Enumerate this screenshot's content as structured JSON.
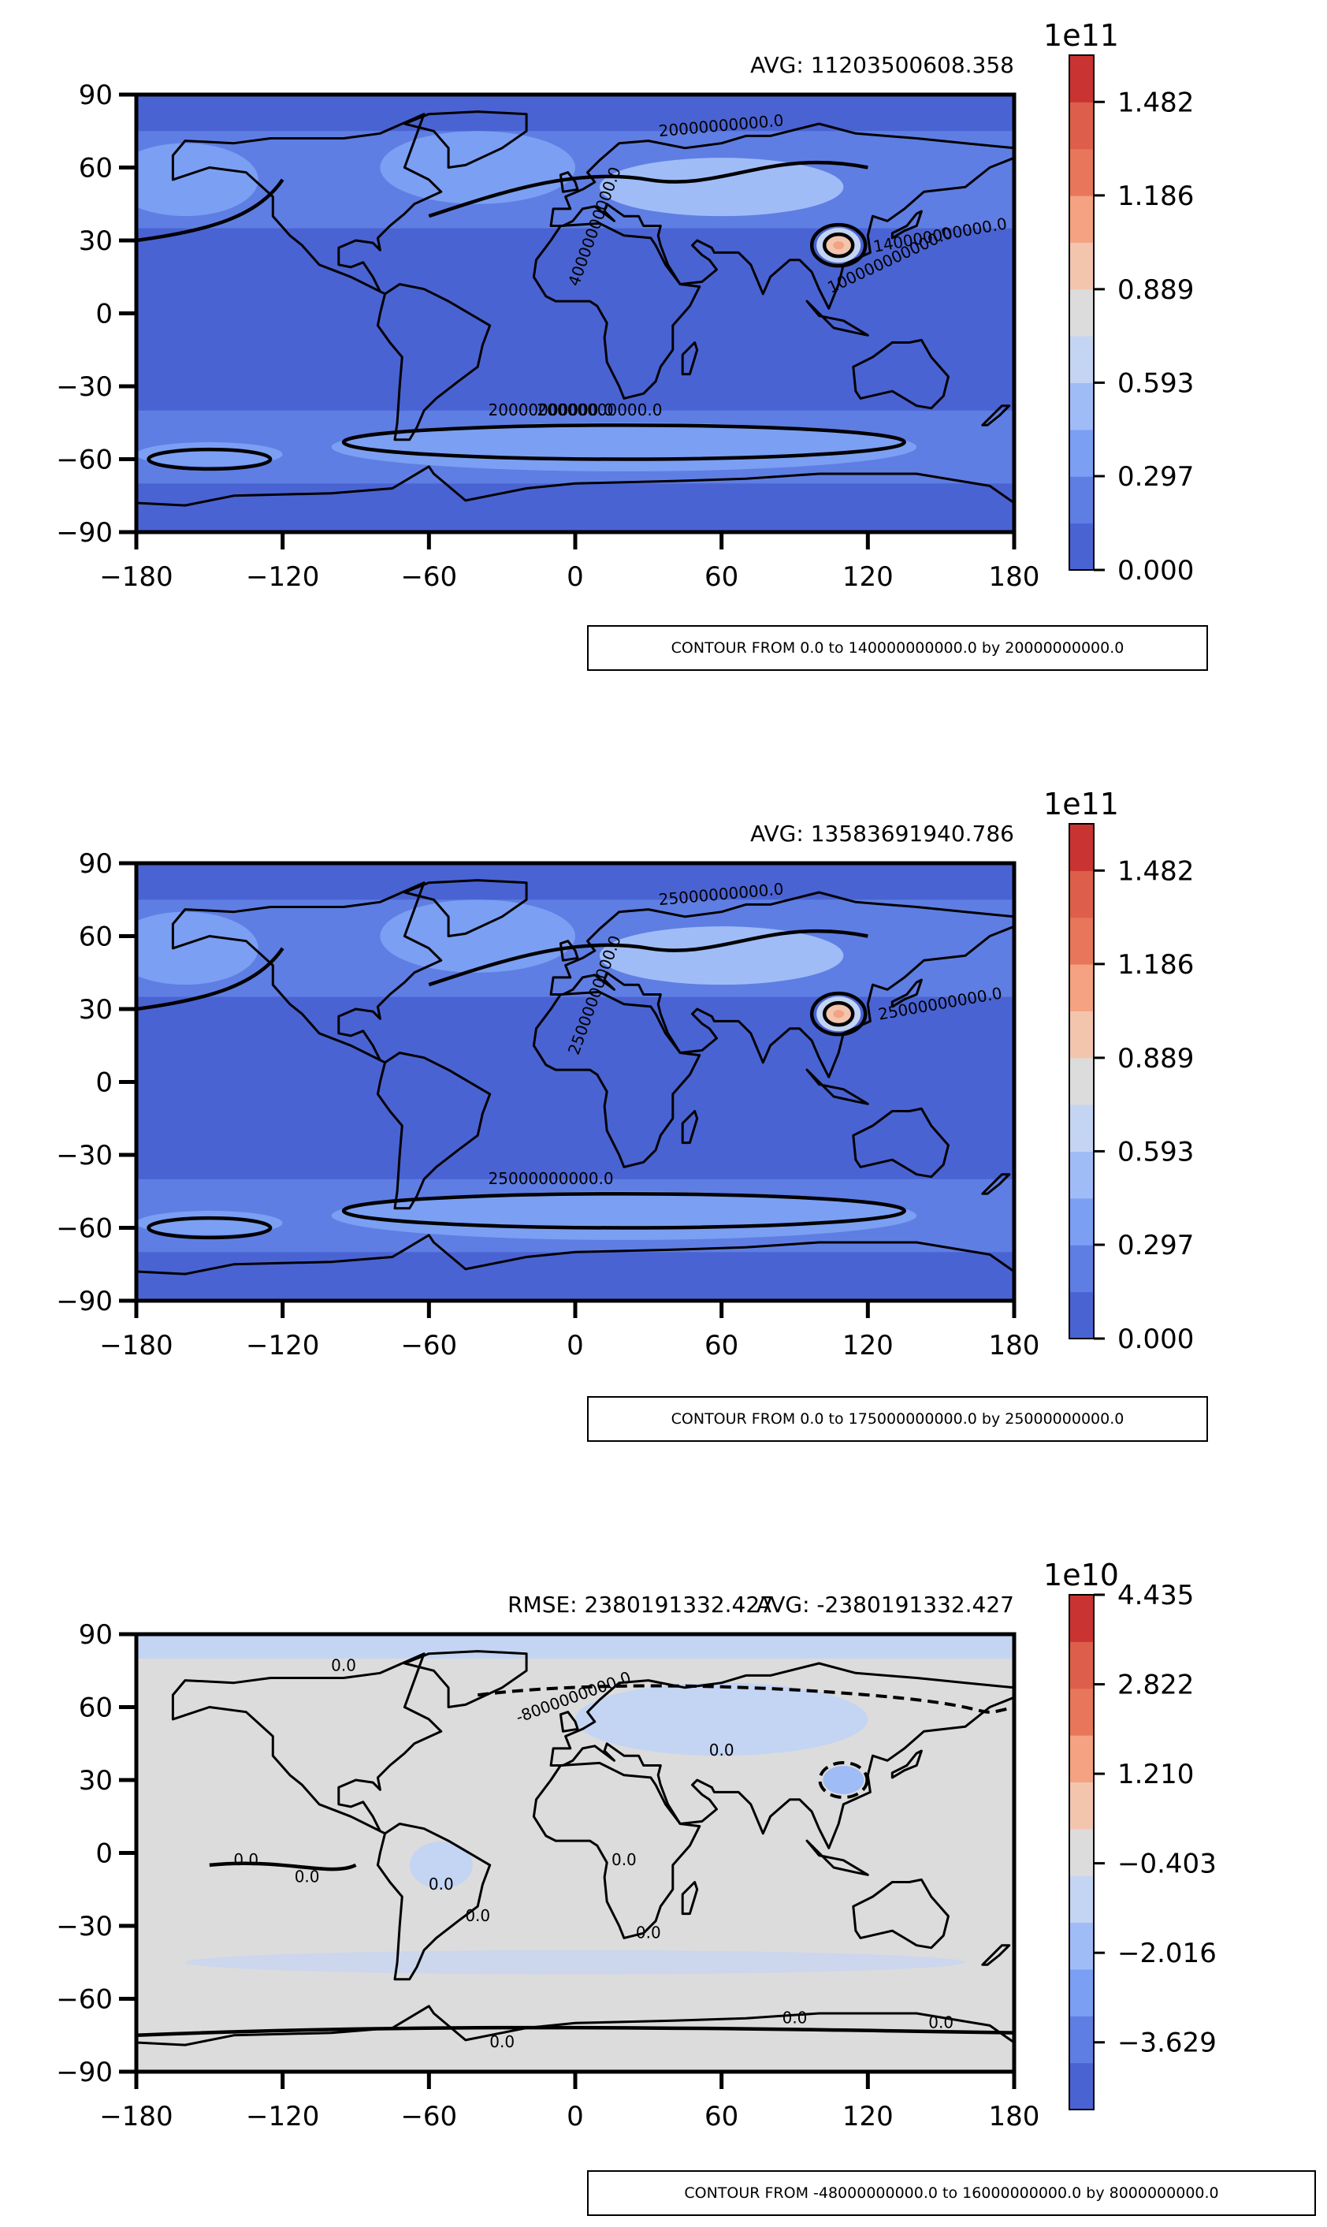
{
  "colors": {
    "ocean_base": "#4a63d3",
    "level1": "#5f7ee3",
    "level2": "#7b9ff3",
    "level3": "#9fbcf7",
    "level4": "#c4d4f3",
    "neutral": "#dcdcdc",
    "warm1": "#f3c5ad",
    "warm2": "#f4a282",
    "warm3": "#e7765a",
    "hot": "#c93331",
    "land_line": "#000000"
  },
  "chart_data": [
    {
      "type": "heatmap",
      "stat_text": "AVG: 11203500608.358",
      "x_ticks": [
        "−180",
        "−120",
        "−60",
        "0",
        "60",
        "120",
        "180"
      ],
      "y_ticks": [
        "90",
        "60",
        "30",
        "0",
        "−30",
        "−60",
        "−90"
      ],
      "xlim": [
        -180,
        180
      ],
      "ylim": [
        -90,
        90
      ],
      "colorbar": {
        "exponent": "1e11",
        "tick_labels": [
          "0.000",
          "0.297",
          "0.593",
          "0.889",
          "1.186",
          "1.482"
        ],
        "range": [
          0,
          1.63
        ],
        "colors": [
          "#4a63d3",
          "#5f7ee3",
          "#7b9ff3",
          "#9fbcf7",
          "#c4d4f3",
          "#dcdcdc",
          "#f3c5ad",
          "#f4a282",
          "#e7765a",
          "#dd5f4b",
          "#c93331"
        ]
      },
      "contour_labels": [
        "20000000000.0",
        "20000000000.0",
        "40000000000.0",
        "140000000000.0",
        "20000000000.0",
        "100000000000.0"
      ],
      "note": "CONTOUR FROM 0.0 to 140000000000.0 by 20000000000.0"
    },
    {
      "type": "heatmap",
      "stat_text": "AVG: 13583691940.786",
      "x_ticks": [
        "−180",
        "−120",
        "−60",
        "0",
        "60",
        "120",
        "180"
      ],
      "y_ticks": [
        "90",
        "60",
        "30",
        "0",
        "−30",
        "−60",
        "−90"
      ],
      "xlim": [
        -180,
        180
      ],
      "ylim": [
        -90,
        90
      ],
      "colorbar": {
        "exponent": "1e11",
        "tick_labels": [
          "0.000",
          "0.297",
          "0.593",
          "0.889",
          "1.186",
          "1.482"
        ],
        "range": [
          0,
          1.63
        ],
        "colors": [
          "#4a63d3",
          "#5f7ee3",
          "#7b9ff3",
          "#9fbcf7",
          "#c4d4f3",
          "#dcdcdc",
          "#f3c5ad",
          "#f4a282",
          "#e7765a",
          "#dd5f4b",
          "#c93331"
        ]
      },
      "contour_labels": [
        "25000000000.0",
        "25000000000.0",
        "25000000000.0",
        "25000000000.0"
      ],
      "note": "CONTOUR FROM 0.0 to 175000000000.0 by 25000000000.0"
    },
    {
      "type": "heatmap",
      "stat_text_left": "RMSE: 2380191332.427",
      "stat_text": "AVG: -2380191332.427",
      "x_ticks": [
        "−180",
        "−120",
        "−60",
        "0",
        "60",
        "120",
        "180"
      ],
      "y_ticks": [
        "90",
        "60",
        "30",
        "0",
        "−30",
        "−60",
        "−90"
      ],
      "xlim": [
        -180,
        180
      ],
      "ylim": [
        -90,
        90
      ],
      "colorbar": {
        "exponent": "1e10",
        "tick_labels": [
          "−3.629",
          "−2.016",
          "−0.403",
          "1.210",
          "2.822",
          "4.435"
        ],
        "range": [
          -4.84,
          4.435
        ],
        "colors": [
          "#4a63d3",
          "#5f7ee3",
          "#7b9ff3",
          "#9fbcf7",
          "#c4d4f3",
          "#dcdcdc",
          "#f3c5ad",
          "#f4a282",
          "#e7765a",
          "#dd5f4b",
          "#c93331"
        ]
      },
      "contour_labels": [
        "0.0",
        "0.0",
        "0.0",
        "0.0",
        "0.0",
        "-8000000000.0",
        "0.0",
        "0.0",
        "0.0",
        "0.0",
        "0.0",
        "0.0"
      ],
      "note": "CONTOUR FROM -48000000000.0 to 16000000000.0 by 8000000000.0"
    }
  ]
}
